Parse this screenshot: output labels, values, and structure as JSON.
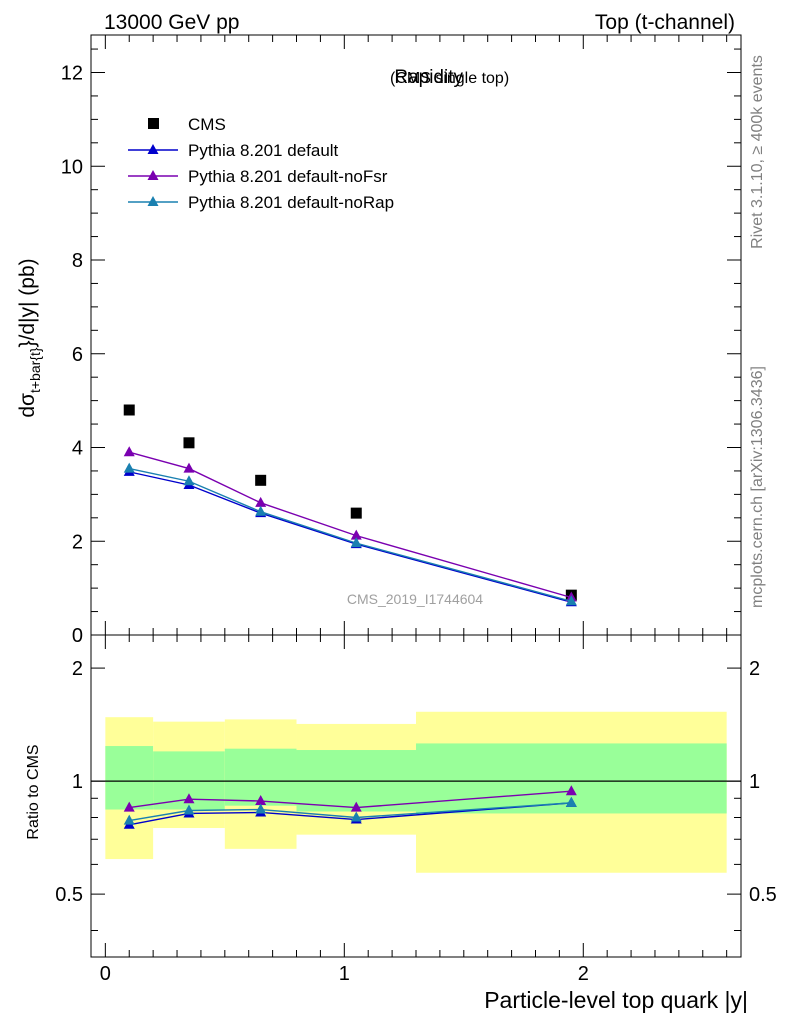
{
  "header": {
    "left": "13000 GeV pp",
    "right": "Top (t-channel)"
  },
  "side_labels": {
    "rivet": "Rivet 3.1.10, ≥ 400k events",
    "mcplots": "mcplots.cern.ch [arXiv:1306.3436]"
  },
  "chart_data": [
    {
      "type": "scatter",
      "title": "Rapidity",
      "subtitle": "(CMS single top)",
      "watermark": "CMS_2019_I1744604",
      "ylabel": {
        "prefix": "dσ",
        "subscript": "t+bar{t}",
        "suffix": "}/d|y|  (pb)"
      },
      "xlim": [
        -0.06,
        2.66
      ],
      "ylim": [
        0,
        12.8
      ],
      "yticks": [
        0,
        2,
        4,
        6,
        8,
        10,
        12
      ],
      "legend_position": "top-left",
      "x": [
        0.1,
        0.35,
        0.65,
        1.05,
        1.95
      ],
      "series": [
        {
          "name": "CMS",
          "marker": "square",
          "color": "#000000",
          "values": [
            4.8,
            4.1,
            3.3,
            2.6,
            0.85
          ]
        },
        {
          "name": "Pythia 8.201 default",
          "marker": "triangle",
          "color": "#0000cc",
          "values": [
            3.48,
            3.2,
            2.6,
            1.94,
            0.7
          ]
        },
        {
          "name": "Pythia 8.201 default-noFsr",
          "marker": "triangle",
          "color": "#7a00b0",
          "values": [
            3.9,
            3.55,
            2.82,
            2.12,
            0.8
          ]
        },
        {
          "name": "Pythia 8.201 default-noRap",
          "marker": "triangle",
          "color": "#1a80b0",
          "values": [
            3.55,
            3.28,
            2.63,
            1.96,
            0.72
          ]
        }
      ]
    },
    {
      "type": "line",
      "ylabel": "Ratio to CMS",
      "xlabel": "Particle-level top quark |y|",
      "xlim": [
        -0.06,
        2.66
      ],
      "ylim": [
        0.34,
        2.45
      ],
      "yticks": [
        0.5,
        1,
        2
      ],
      "xticks": [
        0,
        1,
        2
      ],
      "reference_line": 1,
      "bins": [
        [
          0,
          0.2
        ],
        [
          0.2,
          0.5
        ],
        [
          0.5,
          0.8
        ],
        [
          0.8,
          1.3
        ],
        [
          1.3,
          2.6
        ]
      ],
      "band_inner": {
        "color": "#99ff99",
        "low": [
          0.84,
          0.84,
          0.86,
          0.83,
          0.82
        ],
        "high": [
          1.24,
          1.2,
          1.22,
          1.21,
          1.26
        ]
      },
      "band_outer": {
        "color": "#ffff99",
        "low": [
          0.62,
          0.75,
          0.66,
          0.72,
          0.57
        ],
        "high": [
          1.48,
          1.44,
          1.46,
          1.42,
          1.53
        ]
      },
      "x": [
        0.1,
        0.35,
        0.65,
        1.05,
        1.95
      ],
      "series": [
        {
          "name": "Pythia 8.201 default",
          "color": "#0000cc",
          "values": [
            0.765,
            0.82,
            0.825,
            0.79,
            0.875
          ]
        },
        {
          "name": "Pythia 8.201 default-noFsr",
          "color": "#7a00b0",
          "values": [
            0.85,
            0.895,
            0.885,
            0.85,
            0.94
          ]
        },
        {
          "name": "Pythia 8.201 default-noRap",
          "color": "#1a80b0",
          "values": [
            0.785,
            0.835,
            0.84,
            0.8,
            0.875
          ]
        }
      ]
    }
  ]
}
